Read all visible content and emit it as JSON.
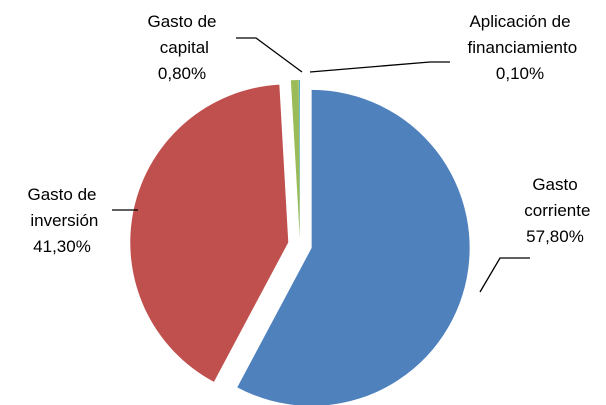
{
  "chart_data": {
    "type": "pie",
    "categories": [
      "Gasto corriente",
      "Gasto de inversión",
      "Gasto de capital",
      "Aplicación de financiamiento"
    ],
    "values": [
      57.8,
      41.3,
      0.8,
      0.1
    ],
    "value_labels": [
      "57,80%",
      "41,30%",
      "0,80%",
      "0,10%"
    ],
    "colors": [
      "#4f81bd",
      "#c0504d",
      "#9bbb59",
      "#4bacc6"
    ]
  }
}
